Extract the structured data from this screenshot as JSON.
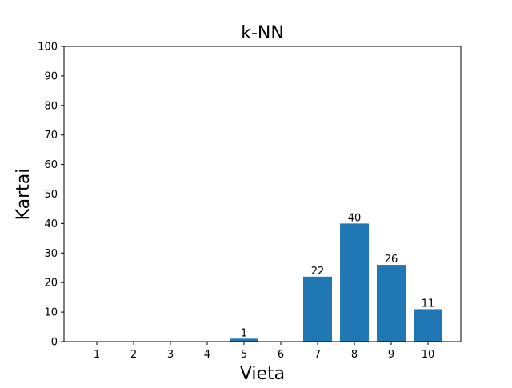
{
  "chart_data": {
    "type": "bar",
    "title": "k-NN",
    "xlabel": "Vieta",
    "ylabel": "Kartai",
    "categories": [
      "1",
      "2",
      "3",
      "4",
      "5",
      "6",
      "7",
      "8",
      "9",
      "10"
    ],
    "values": [
      0,
      0,
      0,
      0,
      1,
      0,
      22,
      40,
      26,
      11
    ],
    "data_labels": [
      "",
      "",
      "",
      "",
      "1",
      "",
      "22",
      "40",
      "26",
      "11"
    ],
    "ylim": [
      0,
      100
    ],
    "yticks": [
      0,
      10,
      20,
      30,
      40,
      50,
      60,
      70,
      80,
      90,
      100
    ],
    "grid": false,
    "bar_color": "#1f77b4"
  }
}
